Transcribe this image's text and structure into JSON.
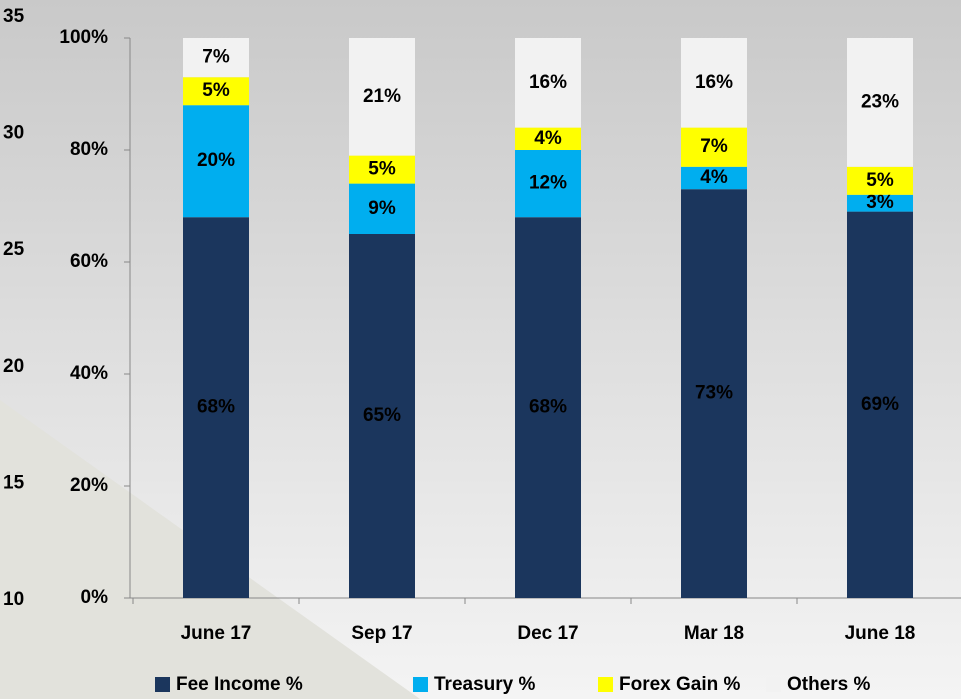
{
  "chart_data": {
    "type": "bar",
    "stacked": true,
    "categories": [
      "June 17",
      "Sep 17",
      "Dec 17",
      "Mar 18",
      "June 18"
    ],
    "series": [
      {
        "name": "Fee Income %",
        "color": "#1b365d",
        "values": [
          68,
          65,
          68,
          73,
          69
        ],
        "value_labels": [
          "68%",
          "65%",
          "68%",
          "73%",
          "69%"
        ]
      },
      {
        "name": "Treasury %",
        "color": "#00aeef",
        "values": [
          20,
          9,
          12,
          4,
          3
        ],
        "value_labels": [
          "20%",
          "9%",
          "12%",
          "4%",
          "3%"
        ]
      },
      {
        "name": "Forex Gain %",
        "color": "#ffff00",
        "values": [
          5,
          5,
          4,
          7,
          5
        ],
        "value_labels": [
          "5%",
          "5%",
          "4%",
          "7%",
          "5%"
        ]
      },
      {
        "name": "Others %",
        "color": "#f2f2f2",
        "values": [
          7,
          21,
          16,
          16,
          23
        ],
        "value_labels": [
          "7%",
          "21%",
          "16%",
          "16%",
          "23%"
        ]
      }
    ],
    "ylim": [
      0,
      100
    ],
    "yticks": [
      {
        "value": 0,
        "label": "0%"
      },
      {
        "value": 20,
        "label": "20%"
      },
      {
        "value": 40,
        "label": "40%"
      },
      {
        "value": 60,
        "label": "60%"
      },
      {
        "value": 80,
        "label": "80%"
      },
      {
        "value": 100,
        "label": "100%"
      }
    ],
    "y2lim": [
      10,
      35
    ],
    "y2ticks": [
      10,
      15,
      20,
      25,
      30,
      35
    ],
    "legend": "bottom"
  }
}
